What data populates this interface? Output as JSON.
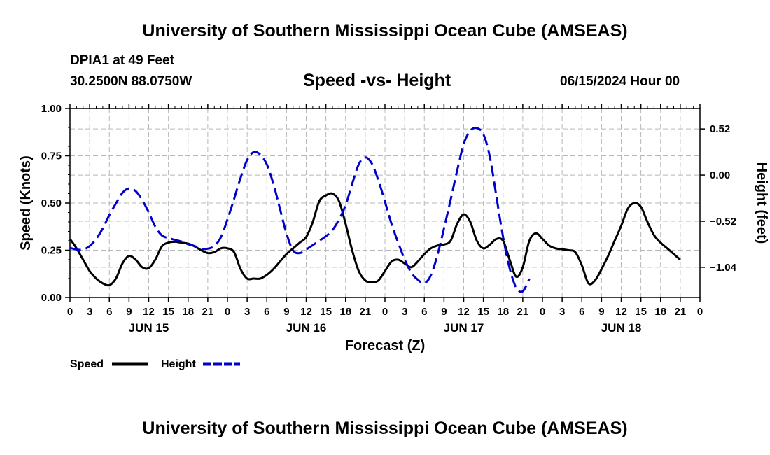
{
  "header": {
    "title": "University of Southern Mississippi Ocean Cube (AMSEAS)",
    "station": "DPIA1 at 49 Feet",
    "coords": "30.2500N  88.0750W",
    "forecast_time": "06/15/2024 Hour 00"
  },
  "footer": {
    "title": "University of Southern Mississippi Ocean Cube (AMSEAS)"
  },
  "chart_data": {
    "type": "line",
    "title": "Speed -vs- Height",
    "xlabel": "Forecast (Z)",
    "ylabel": "Speed (Knots)",
    "y2label": "Height (feet)",
    "grid": true,
    "legend_position": "bottom-left",
    "x_range": [
      0,
      96
    ],
    "x_tick_step": 3,
    "x_tick_labels": [
      "0",
      "3",
      "6",
      "9",
      "12",
      "15",
      "18",
      "21",
      "0",
      "3",
      "6",
      "9",
      "12",
      "15",
      "18",
      "21",
      "0",
      "3",
      "6",
      "9",
      "12",
      "15",
      "18",
      "21",
      "0",
      "3",
      "6",
      "9",
      "12",
      "15",
      "18",
      "21",
      "0"
    ],
    "day_labels": [
      {
        "label": "JUN 15",
        "x": 12
      },
      {
        "label": "JUN 16",
        "x": 36
      },
      {
        "label": "JUN 17",
        "x": 60
      },
      {
        "label": "JUN 18",
        "x": 84
      }
    ],
    "y_left": {
      "range": [
        0,
        1.0
      ],
      "ticks": [
        0,
        0.25,
        0.5,
        0.75,
        1.0
      ],
      "tick_labels": [
        "0.00",
        "0.25",
        "0.50",
        "0.75",
        "1.00"
      ]
    },
    "y_right": {
      "range": [
        -1.38,
        0.75
      ],
      "ticks": [
        0.52,
        0.0,
        -0.52,
        -1.04
      ],
      "tick_labels": [
        "0.52",
        "0.00",
        "−0.52",
        "−1.04"
      ]
    },
    "series": [
      {
        "name": "Speed",
        "axis": "left",
        "color": "#000000",
        "dash": "solid",
        "points": [
          [
            0,
            0.31
          ],
          [
            1,
            0.26
          ],
          [
            2,
            0.2
          ],
          [
            3,
            0.14
          ],
          [
            4,
            0.1
          ],
          [
            5,
            0.075
          ],
          [
            6,
            0.065
          ],
          [
            7,
            0.1
          ],
          [
            8,
            0.18
          ],
          [
            9,
            0.22
          ],
          [
            10,
            0.2
          ],
          [
            11,
            0.16
          ],
          [
            12,
            0.155
          ],
          [
            13,
            0.2
          ],
          [
            14,
            0.27
          ],
          [
            15,
            0.29
          ],
          [
            16,
            0.295
          ],
          [
            17,
            0.29
          ],
          [
            18,
            0.285
          ],
          [
            19,
            0.27
          ],
          [
            20,
            0.25
          ],
          [
            21,
            0.235
          ],
          [
            22,
            0.24
          ],
          [
            23,
            0.26
          ],
          [
            24,
            0.26
          ],
          [
            25,
            0.24
          ],
          [
            26,
            0.15
          ],
          [
            27,
            0.1
          ],
          [
            28,
            0.1
          ],
          [
            29,
            0.1
          ],
          [
            30,
            0.12
          ],
          [
            31,
            0.15
          ],
          [
            32,
            0.19
          ],
          [
            33,
            0.23
          ],
          [
            34,
            0.26
          ],
          [
            35,
            0.29
          ],
          [
            36,
            0.32
          ],
          [
            37,
            0.4
          ],
          [
            38,
            0.51
          ],
          [
            39,
            0.54
          ],
          [
            40,
            0.55
          ],
          [
            41,
            0.51
          ],
          [
            42,
            0.39
          ],
          [
            43,
            0.25
          ],
          [
            44,
            0.14
          ],
          [
            45,
            0.09
          ],
          [
            46,
            0.08
          ],
          [
            47,
            0.09
          ],
          [
            48,
            0.14
          ],
          [
            49,
            0.19
          ],
          [
            50,
            0.2
          ],
          [
            51,
            0.18
          ],
          [
            52,
            0.16
          ],
          [
            53,
            0.19
          ],
          [
            54,
            0.23
          ],
          [
            55,
            0.26
          ],
          [
            56,
            0.275
          ],
          [
            57,
            0.28
          ],
          [
            58,
            0.3
          ],
          [
            59,
            0.39
          ],
          [
            60,
            0.44
          ],
          [
            61,
            0.4
          ],
          [
            62,
            0.3
          ],
          [
            63,
            0.26
          ],
          [
            64,
            0.28
          ],
          [
            65,
            0.31
          ],
          [
            66,
            0.3
          ],
          [
            67,
            0.2
          ],
          [
            68,
            0.11
          ],
          [
            69,
            0.16
          ],
          [
            70,
            0.3
          ],
          [
            71,
            0.34
          ],
          [
            72,
            0.31
          ],
          [
            73,
            0.275
          ],
          [
            74,
            0.26
          ],
          [
            75,
            0.255
          ],
          [
            76,
            0.25
          ],
          [
            77,
            0.24
          ],
          [
            78,
            0.17
          ],
          [
            79,
            0.075
          ],
          [
            80,
            0.09
          ],
          [
            81,
            0.15
          ],
          [
            82,
            0.22
          ],
          [
            83,
            0.3
          ],
          [
            84,
            0.38
          ],
          [
            85,
            0.47
          ],
          [
            86,
            0.5
          ],
          [
            87,
            0.48
          ],
          [
            88,
            0.4
          ],
          [
            89,
            0.33
          ],
          [
            90,
            0.29
          ],
          [
            91,
            0.26
          ],
          [
            92,
            0.23
          ],
          [
            93,
            0.2
          ]
        ]
      },
      {
        "name": "Height",
        "axis": "right",
        "color": "#0000cc",
        "dash": "dashed",
        "points": [
          [
            0,
            -0.82
          ],
          [
            1,
            -0.84
          ],
          [
            2,
            -0.84
          ],
          [
            3,
            -0.8
          ],
          [
            4,
            -0.72
          ],
          [
            5,
            -0.6
          ],
          [
            6,
            -0.45
          ],
          [
            7,
            -0.32
          ],
          [
            8,
            -0.2
          ],
          [
            9,
            -0.15
          ],
          [
            10,
            -0.18
          ],
          [
            11,
            -0.28
          ],
          [
            12,
            -0.42
          ],
          [
            13,
            -0.58
          ],
          [
            14,
            -0.68
          ],
          [
            15,
            -0.71
          ],
          [
            16,
            -0.73
          ],
          [
            17,
            -0.75
          ],
          [
            18,
            -0.78
          ],
          [
            19,
            -0.8
          ],
          [
            20,
            -0.83
          ],
          [
            21,
            -0.83
          ],
          [
            22,
            -0.8
          ],
          [
            23,
            -0.7
          ],
          [
            24,
            -0.5
          ],
          [
            25,
            -0.27
          ],
          [
            26,
            -0.03
          ],
          [
            27,
            0.17
          ],
          [
            28,
            0.26
          ],
          [
            29,
            0.23
          ],
          [
            30,
            0.12
          ],
          [
            31,
            -0.1
          ],
          [
            32,
            -0.38
          ],
          [
            33,
            -0.66
          ],
          [
            34,
            -0.85
          ],
          [
            35,
            -0.88
          ],
          [
            36,
            -0.84
          ],
          [
            37,
            -0.79
          ],
          [
            38,
            -0.74
          ],
          [
            39,
            -0.69
          ],
          [
            40,
            -0.62
          ],
          [
            41,
            -0.5
          ],
          [
            42,
            -0.34
          ],
          [
            43,
            -0.1
          ],
          [
            44,
            0.12
          ],
          [
            45,
            0.2
          ],
          [
            46,
            0.13
          ],
          [
            47,
            -0.06
          ],
          [
            48,
            -0.3
          ],
          [
            49,
            -0.55
          ],
          [
            50,
            -0.76
          ],
          [
            51,
            -0.95
          ],
          [
            52,
            -1.1
          ],
          [
            53,
            -1.18
          ],
          [
            54,
            -1.22
          ],
          [
            55,
            -1.13
          ],
          [
            56,
            -0.9
          ],
          [
            57,
            -0.6
          ],
          [
            58,
            -0.28
          ],
          [
            59,
            0.05
          ],
          [
            60,
            0.35
          ],
          [
            61,
            0.5
          ],
          [
            62,
            0.53
          ],
          [
            63,
            0.46
          ],
          [
            64,
            0.2
          ],
          [
            65,
            -0.25
          ],
          [
            66,
            -0.7
          ],
          [
            67,
            -1.05
          ],
          [
            68,
            -1.27
          ],
          [
            69,
            -1.31
          ],
          [
            70,
            -1.17
          ]
        ]
      }
    ]
  },
  "legend": {
    "items": [
      {
        "label": "Speed",
        "color": "#000000",
        "dash": "solid"
      },
      {
        "label": "Height",
        "color": "#0000cc",
        "dash": "dashed"
      }
    ]
  }
}
